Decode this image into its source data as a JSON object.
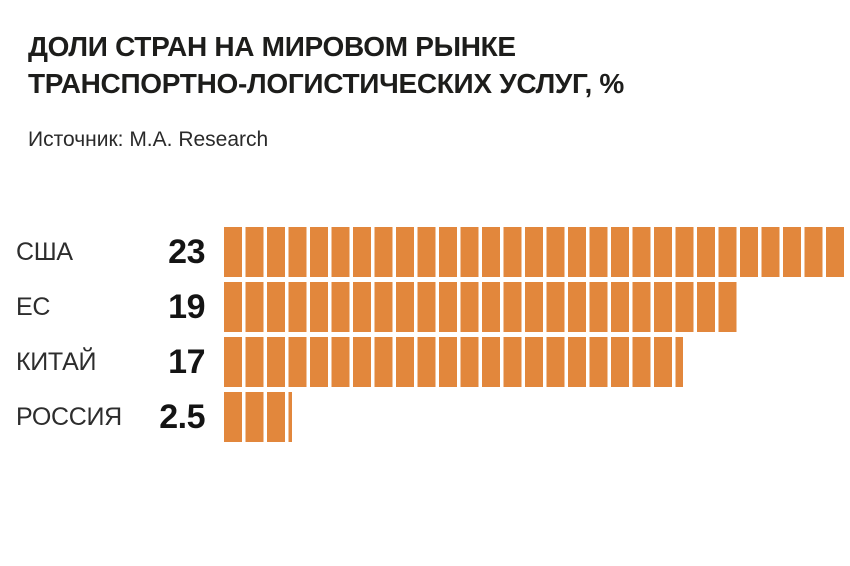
{
  "title": {
    "line1": "ДОЛИ СТРАН НА МИРОВОМ РЫНКЕ",
    "line2": "ТРАНСПОРТНО-ЛОГИСТИЧЕСКИХ УСЛУГ, %"
  },
  "source": "Источник: M.A. Research",
  "colors": {
    "bar": "#E2873C",
    "title_text": "#1D1D1B",
    "label_text": "#2D2D2D",
    "background": "#FFFFFF"
  },
  "chart_data": {
    "type": "bar",
    "orientation": "horizontal",
    "title": "ДОЛИ СТРАН НА МИРОВОМ РЫНКЕ ТРАНСПОРТНО-ЛОГИСТИЧЕСКИХ УСЛУГ, %",
    "source": "Источник: M.A. Research",
    "unit": "%",
    "categories": [
      "США",
      "ЕС",
      "КИТАЙ",
      "РОССИЯ"
    ],
    "values": [
      23,
      19,
      17,
      2.5
    ],
    "value_labels": [
      "23",
      "19",
      "17",
      "2.5"
    ],
    "xlim": [
      0,
      23.2
    ],
    "grid": false,
    "legend": "none",
    "bar_style": "segmented vertical stripes, orange"
  },
  "rows": [
    {
      "label": "США",
      "value_label": "23",
      "value": 23
    },
    {
      "label": "ЕС",
      "value_label": "19",
      "value": 19
    },
    {
      "label": "КИТАЙ",
      "value_label": "17",
      "value": 17
    },
    {
      "label": "РОССИЯ",
      "value_label": "2.5",
      "value": 2.5
    }
  ]
}
